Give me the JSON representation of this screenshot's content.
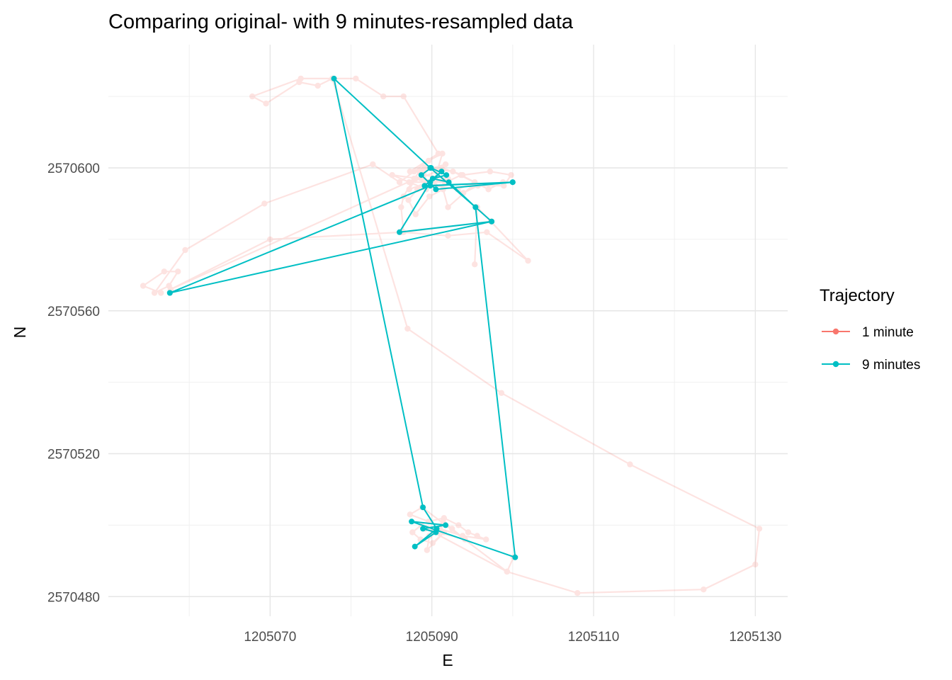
{
  "chart_data": {
    "type": "line",
    "title": "Comparing original- with 9 minutes-resampled data",
    "xlabel": "E",
    "ylabel": "N",
    "xlim": [
      1205050,
      1205134
    ],
    "ylim": [
      2570474.5,
      2570634.5
    ],
    "x_ticks": [
      1205070,
      1205090,
      1205110,
      1205130
    ],
    "y_ticks": [
      2570480,
      2570520,
      2570560,
      2570600
    ],
    "grid": true,
    "legend": {
      "title": "Trajectory",
      "position": "right"
    },
    "series": [
      {
        "name": "1 minute",
        "color": "#F8766D",
        "opacity": 0.2,
        "points": [
          [
            1205056.5,
            2570565
          ],
          [
            1205054.3,
            2570567
          ],
          [
            1205056.9,
            2570571
          ],
          [
            1205058.6,
            2570571
          ],
          [
            1205057.5,
            2570567
          ],
          [
            1205055.7,
            2570565
          ],
          [
            1205059.5,
            2570577
          ],
          [
            1205069.3,
            2570590
          ],
          [
            1205082.7,
            2570601
          ],
          [
            1205086.0,
            2570596
          ],
          [
            1205087.8,
            2570599
          ],
          [
            1205089.6,
            2570602
          ],
          [
            1205091.3,
            2570604
          ],
          [
            1205090.4,
            2570597
          ],
          [
            1205088.2,
            2570594
          ],
          [
            1205087.1,
            2570591
          ],
          [
            1205088.0,
            2570587
          ],
          [
            1205089.7,
            2570592
          ],
          [
            1205091.4,
            2570594
          ],
          [
            1205092.0,
            2570589
          ],
          [
            1205095.0,
            2570595
          ],
          [
            1205098.9,
            2570595
          ],
          [
            1205099.8,
            2570598
          ],
          [
            1205097.2,
            2570599
          ],
          [
            1205093.8,
            2570598
          ],
          [
            1205091.2,
            2570600
          ],
          [
            1205088.5,
            2570599
          ],
          [
            1205087.8,
            2570597
          ],
          [
            1205086.5,
            2570592
          ],
          [
            1205086.2,
            2570589
          ],
          [
            1205086.5,
            2570582
          ],
          [
            1205097.3,
            2570585
          ],
          [
            1205095.6,
            2570589
          ],
          [
            1205095.3,
            2570573
          ],
          [
            1205095.6,
            2570589
          ],
          [
            1205097.3,
            2570585
          ],
          [
            1205101.9,
            2570574
          ],
          [
            1205096.8,
            2570582
          ],
          [
            1205092.0,
            2570581
          ],
          [
            1205086.3,
            2570582
          ],
          [
            1205070.0,
            2570580
          ],
          [
            1205057.7,
            2570566
          ],
          [
            1205089.0,
            2570598
          ],
          [
            1205092.0,
            2570597
          ],
          [
            1205089.4,
            2570596
          ],
          [
            1205088.7,
            2570599
          ],
          [
            1205091.7,
            2570601
          ],
          [
            1205090.6,
            2570599
          ],
          [
            1205087.2,
            2570596
          ],
          [
            1205091.8,
            2570596
          ],
          [
            1205093.6,
            2570598
          ],
          [
            1205095.3,
            2570596
          ],
          [
            1205093.2,
            2570594
          ],
          [
            1205090.4,
            2570595
          ],
          [
            1205088.0,
            2570597
          ],
          [
            1205087.2,
            2570594
          ],
          [
            1205089.6,
            2570596
          ],
          [
            1205088.5,
            2570599
          ],
          [
            1205089.3,
            2570594
          ],
          [
            1205085.1,
            2570598
          ],
          [
            1205091.6,
            2570596
          ],
          [
            1205093.9,
            2570593
          ],
          [
            1205095.7,
            2570595
          ],
          [
            1205098.8,
            2570596
          ],
          [
            1205097.0,
            2570594
          ],
          [
            1205092.6,
            2570599
          ],
          [
            1205089.1,
            2570600
          ],
          [
            1205087.3,
            2570599
          ],
          [
            1205090.8,
            2570604
          ],
          [
            1205086.5,
            2570620
          ],
          [
            1205084.0,
            2570620
          ],
          [
            1205080.6,
            2570625
          ],
          [
            1205077.7,
            2570625
          ],
          [
            1205075.9,
            2570623
          ],
          [
            1205073.6,
            2570624
          ],
          [
            1205069.5,
            2570618
          ],
          [
            1205067.8,
            2570620
          ],
          [
            1205073.8,
            2570625
          ],
          [
            1205077.7,
            2570625
          ],
          [
            1205087.0,
            2570555
          ],
          [
            1205098.6,
            2570537
          ],
          [
            1205114.5,
            2570517
          ],
          [
            1205130.5,
            2570499
          ],
          [
            1205130.0,
            2570489
          ],
          [
            1205123.6,
            2570482
          ],
          [
            1205108.0,
            2570481
          ],
          [
            1205099.3,
            2570487
          ],
          [
            1205088.8,
            2570505
          ],
          [
            1205087.3,
            2570503
          ],
          [
            1205089.6,
            2570501
          ],
          [
            1205091.5,
            2570502
          ],
          [
            1205093.3,
            2570500
          ],
          [
            1205094.5,
            2570498
          ],
          [
            1205095.6,
            2570497
          ],
          [
            1205096.7,
            2570496
          ],
          [
            1205093.8,
            2570497
          ],
          [
            1205091.0,
            2570499
          ],
          [
            1205088.7,
            2570500
          ],
          [
            1205087.6,
            2570498
          ],
          [
            1205088.6,
            2570496
          ],
          [
            1205090.1,
            2570495
          ],
          [
            1205091.5,
            2570498
          ],
          [
            1205089.4,
            2570493
          ],
          [
            1205089.7,
            2570497
          ],
          [
            1205091.4,
            2570501
          ],
          [
            1205092.5,
            2570499
          ],
          [
            1205094.1,
            2570496
          ],
          [
            1205090.8,
            2570498
          ],
          [
            1205089.2,
            2570499
          ],
          [
            1205090.2,
            2570498
          ],
          [
            1205099.3,
            2570487
          ],
          [
            1205100.1,
            2570491
          ]
        ]
      },
      {
        "name": "9 minutes",
        "color": "#00BFC4",
        "opacity": 1,
        "points": [
          [
            1205057.6,
            2570565
          ],
          [
            1205097.4,
            2570585
          ],
          [
            1205086.0,
            2570582
          ],
          [
            1205089.8,
            2570596
          ],
          [
            1205091.2,
            2570599
          ],
          [
            1205089.1,
            2570595
          ],
          [
            1205100.0,
            2570596
          ],
          [
            1205090.5,
            2570594
          ],
          [
            1205088.7,
            2570598
          ],
          [
            1205089.9,
            2570600
          ],
          [
            1205091.8,
            2570598
          ],
          [
            1205090.1,
            2570597
          ],
          [
            1205092.1,
            2570596
          ],
          [
            1205095.4,
            2570589
          ],
          [
            1205100.3,
            2570491
          ],
          [
            1205087.5,
            2570501
          ],
          [
            1205091.7,
            2570500
          ],
          [
            1205088.9,
            2570499
          ],
          [
            1205090.5,
            2570498
          ],
          [
            1205087.9,
            2570494
          ],
          [
            1205090.6,
            2570499
          ],
          [
            1205088.9,
            2570505
          ],
          [
            1205077.9,
            2570625
          ],
          [
            1205089.8,
            2570600
          ],
          [
            1205095.4,
            2570589
          ],
          [
            1205097.4,
            2570585
          ],
          [
            1205057.6,
            2570565
          ],
          [
            1205089.8,
            2570595
          ],
          [
            1205100.0,
            2570596
          ]
        ]
      }
    ]
  }
}
